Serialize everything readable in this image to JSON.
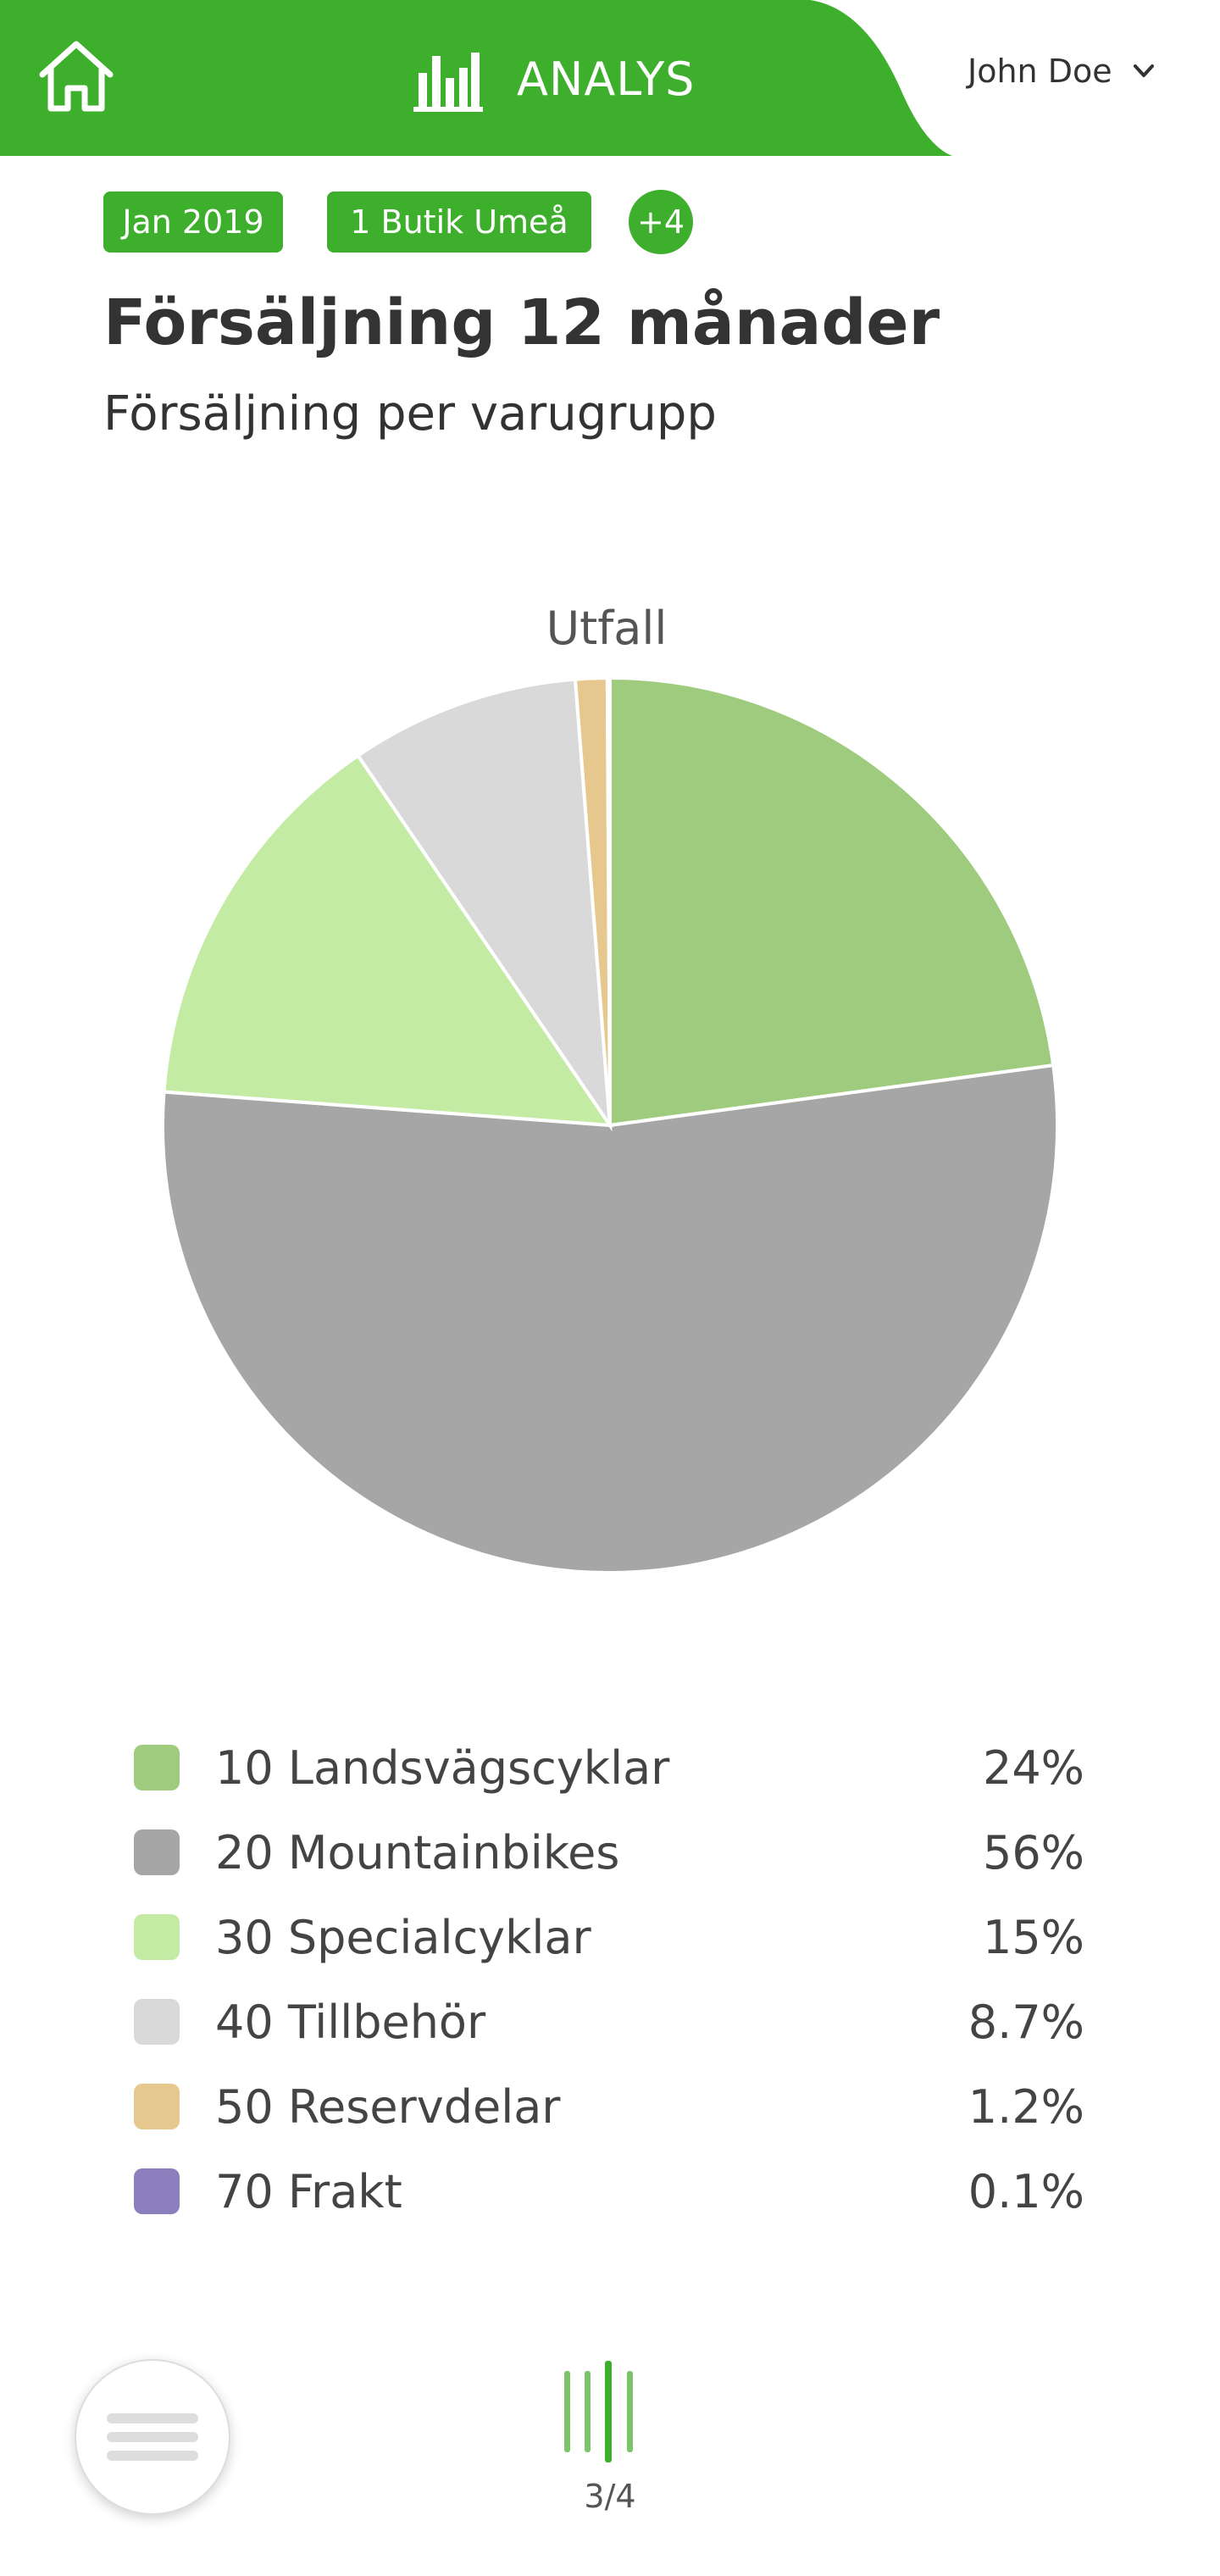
{
  "header": {
    "app_title": "ANALYS",
    "user_name": "John Doe",
    "brand_color": "#3eaf2c",
    "icons": {
      "home": "home-icon",
      "chart": "bar-chart-icon",
      "user_menu": "chevron-down-icon"
    }
  },
  "filters": {
    "period": "Jan 2019",
    "store": "1 Butik Umeå",
    "more": "+4"
  },
  "page": {
    "title": "Försäljning 12 månader",
    "subtitle": "Försäljning per varugrupp"
  },
  "chart_data": {
    "type": "pie",
    "title": "Utfall",
    "categories": [
      "10 Landsvägscyklar",
      "20 Mountainbikes",
      "30 Specialcyklar",
      "40 Tillbehör",
      "50 Reservdelar",
      "70 Frakt"
    ],
    "values": [
      24,
      56,
      15,
      8.7,
      1.2,
      0.1
    ],
    "value_labels": [
      "24%",
      "56%",
      "15%",
      "8.7%",
      "1.2%",
      "0.1%"
    ],
    "colors": [
      "#9fcb7e",
      "#a6a6a6",
      "#c3eba3",
      "#d9d9d9",
      "#e6c88e",
      "#8b80bd"
    ],
    "unit": "%",
    "legend": "bottom"
  },
  "legend": [
    {
      "label": "10 Landsvägscyklar",
      "value": "24%",
      "color": "#9fcb7e"
    },
    {
      "label": "20 Mountainbikes",
      "value": "56%",
      "color": "#a6a6a6"
    },
    {
      "label": "30 Specialcyklar",
      "value": "15%",
      "color": "#c3eba3"
    },
    {
      "label": "40 Tillbehör",
      "value": "8.7%",
      "color": "#d9d9d9"
    },
    {
      "label": "50 Reservdelar",
      "value": "1.2%",
      "color": "#e6c88e"
    },
    {
      "label": "70 Frakt",
      "value": "0.1%",
      "color": "#8b80bd"
    }
  ],
  "footer": {
    "pager": "3/4",
    "icons": {
      "menu": "hamburger-menu-icon",
      "pager": "page-indicator-icon"
    }
  }
}
